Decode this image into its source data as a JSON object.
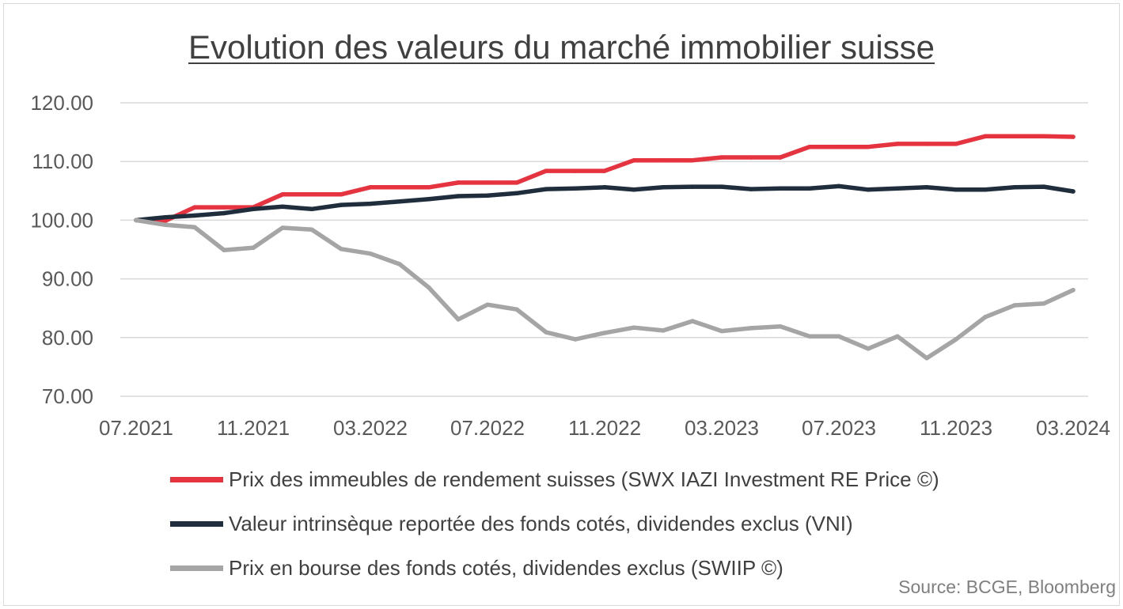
{
  "chart_data": {
    "type": "line",
    "title": "Evolution des valeurs du marché immobilier suisse",
    "x": [
      "07.2021",
      "08.2021",
      "09.2021",
      "10.2021",
      "11.2021",
      "12.2021",
      "01.2022",
      "02.2022",
      "03.2022",
      "04.2022",
      "05.2022",
      "06.2022",
      "07.2022",
      "08.2022",
      "09.2022",
      "10.2022",
      "11.2022",
      "12.2022",
      "01.2023",
      "02.2023",
      "03.2023",
      "04.2023",
      "05.2023",
      "06.2023",
      "07.2023",
      "08.2023",
      "09.2023",
      "10.2023",
      "11.2023",
      "12.2023",
      "01.2024",
      "02.2024",
      "03.2024"
    ],
    "yticks": [
      "70.00",
      "80.00",
      "90.00",
      "100.00",
      "110.00",
      "120.00"
    ],
    "ylim": [
      70,
      120
    ],
    "grid": true,
    "legend": "bottom",
    "series": [
      {
        "name": "Prix des immeubles de rendement suisses (SWX IAZI Investment RE Price ©)",
        "color": "#e5333f",
        "values": [
          100.0,
          99.9,
          102.2,
          102.2,
          102.2,
          104.4,
          104.4,
          104.4,
          105.6,
          105.6,
          105.6,
          106.4,
          106.4,
          106.4,
          108.4,
          108.4,
          108.4,
          110.2,
          110.2,
          110.2,
          110.7,
          110.7,
          110.7,
          112.5,
          112.5,
          112.5,
          113.0,
          113.0,
          113.0,
          114.3,
          114.3,
          114.3,
          114.2
        ]
      },
      {
        "name": "Valeur intrinsèque reportée des fonds cotés, dividendes exclus (VNI)",
        "color": "#1f2d3d",
        "values": [
          100.0,
          100.5,
          100.8,
          101.2,
          101.9,
          102.3,
          101.9,
          102.6,
          102.8,
          103.2,
          103.6,
          104.1,
          104.2,
          104.6,
          105.3,
          105.4,
          105.6,
          105.2,
          105.6,
          105.7,
          105.7,
          105.3,
          105.4,
          105.4,
          105.8,
          105.2,
          105.4,
          105.6,
          105.2,
          105.2,
          105.6,
          105.7,
          104.9
        ]
      },
      {
        "name": "Prix en bourse des fonds cotés, dividendes exclus (SWIIP ©)",
        "color": "#a5a5a5",
        "values": [
          100.0,
          99.2,
          98.8,
          94.9,
          95.3,
          98.7,
          98.4,
          95.1,
          94.3,
          92.5,
          88.5,
          83.1,
          85.6,
          84.8,
          80.9,
          79.7,
          80.8,
          81.7,
          81.2,
          82.8,
          81.1,
          81.6,
          81.9,
          80.2,
          80.2,
          78.1,
          80.2,
          76.5,
          79.7,
          83.5,
          85.5,
          85.8,
          88.1
        ]
      }
    ],
    "source": "Source: BCGE, Bloomberg"
  }
}
